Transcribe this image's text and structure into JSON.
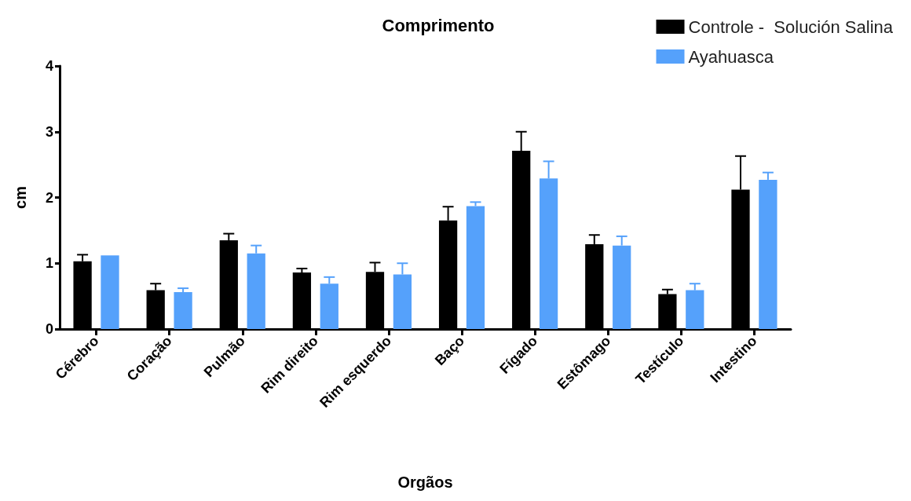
{
  "chart_data": {
    "type": "bar",
    "title": "Comprimento",
    "xlabel": "Orgãos",
    "ylabel": "cm",
    "categories": [
      "Cérebro",
      "Coração",
      "Pulmão",
      "Rim direito",
      "Rim esquerdo",
      "Baço",
      "Fígado",
      "Estômago",
      "Testículo",
      "Intestino"
    ],
    "series": [
      {
        "name": "Controle -  Solución Salina",
        "color": "#000000",
        "values": [
          1.03,
          0.59,
          1.35,
          0.86,
          0.87,
          1.65,
          2.71,
          1.29,
          0.53,
          2.12
        ],
        "errors": [
          [
            1.03,
            1.13
          ],
          [
            0.59,
            0.69
          ],
          [
            1.35,
            1.45
          ],
          [
            0.86,
            0.92
          ],
          [
            0.87,
            1.01
          ],
          [
            1.65,
            1.86
          ],
          [
            2.71,
            3.0
          ],
          [
            1.29,
            1.43
          ],
          [
            0.53,
            0.6
          ],
          [
            2.12,
            2.63
          ]
        ]
      },
      {
        "name": "Ayahuasca",
        "color": "#55a1fb",
        "values": [
          1.12,
          0.56,
          1.15,
          0.69,
          0.83,
          1.87,
          2.29,
          1.27,
          0.59,
          2.27
        ],
        "errors": [
          null,
          [
            0.56,
            0.62
          ],
          [
            1.15,
            1.27
          ],
          [
            0.69,
            0.79
          ],
          [
            0.83,
            1.0
          ],
          [
            1.87,
            1.93
          ],
          [
            2.29,
            2.55
          ],
          [
            1.27,
            1.41
          ],
          [
            0.59,
            0.69
          ],
          [
            2.27,
            2.38
          ]
        ]
      }
    ],
    "ylim": [
      0,
      4
    ],
    "yticks": [
      0,
      1,
      2,
      3,
      4
    ],
    "grid": false,
    "legend": "top right"
  }
}
